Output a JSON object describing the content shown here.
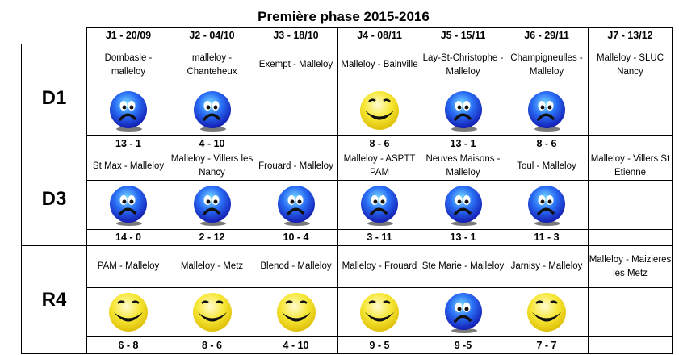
{
  "title": "Première phase 2015-2016",
  "colors": {
    "win": "#f5e11c",
    "loss": "#1e40e0"
  },
  "headers": [
    "J1 - 20/09",
    "J2 - 04/10",
    "J3 - 18/10",
    "J4 - 08/11",
    "J5 - 15/11",
    "J6 - 29/11",
    "J7 - 13/12"
  ],
  "divisions": [
    {
      "name": "D1",
      "matches": [
        {
          "match": "Dombasle - malleloy",
          "result": "sad-smiley",
          "score": "13 - 1"
        },
        {
          "match": "malleloy - Chanteheux",
          "result": "sad-smiley",
          "score": "4 - 10"
        },
        {
          "match": "Exempt - Malleloy",
          "result": "",
          "score": ""
        },
        {
          "match": "Malleloy - Bainville",
          "result": "happy-smiley",
          "score": "8 - 6"
        },
        {
          "match": "Lay-St-Christophe - Malleloy",
          "result": "sad-smiley",
          "score": "13 - 1"
        },
        {
          "match": "Champigneulles - Malleloy",
          "result": "sad-smiley",
          "score": "8 - 6"
        },
        {
          "match": "Malleloy - SLUC Nancy",
          "result": "",
          "score": ""
        }
      ]
    },
    {
      "name": "D3",
      "matches": [
        {
          "match": "St Max - Malleloy",
          "result": "sad-smiley",
          "score": "14 - 0"
        },
        {
          "match": "Malleloy - Villers les Nancy",
          "result": "sad-smiley",
          "score": "2 - 12"
        },
        {
          "match": "Frouard - Malleloy",
          "result": "sad-smiley",
          "score": "10 - 4"
        },
        {
          "match": "Malleloy - ASPTT PAM",
          "result": "sad-smiley",
          "score": "3 - 11"
        },
        {
          "match": "Neuves Maisons - Malleloy",
          "result": "sad-smiley",
          "score": "13 - 1"
        },
        {
          "match": "Toul - Malleloy",
          "result": "sad-smiley",
          "score": "11 - 3"
        },
        {
          "match": "Malleloy - Villers St Etienne",
          "result": "",
          "score": ""
        }
      ]
    },
    {
      "name": "R4",
      "matches": [
        {
          "match": "PAM - Malleloy",
          "result": "happy-smiley",
          "score": "6 - 8"
        },
        {
          "match": "Malleloy - Metz",
          "result": "happy-smiley",
          "score": "8 - 6"
        },
        {
          "match": "Blenod - Malleloy",
          "result": "happy-smiley",
          "score": "4 - 10"
        },
        {
          "match": "Malleloy - Frouard",
          "result": "happy-smiley",
          "score": "9 - 5"
        },
        {
          "match": "Ste Marie - Malleloy",
          "result": "sad-smiley",
          "score": "9 -5"
        },
        {
          "match": "Jarnisy - Malleloy",
          "result": "happy-smiley",
          "score": "7 - 7"
        },
        {
          "match": "Malleloy - Maizieres les Metz",
          "result": "",
          "score": ""
        }
      ]
    }
  ]
}
